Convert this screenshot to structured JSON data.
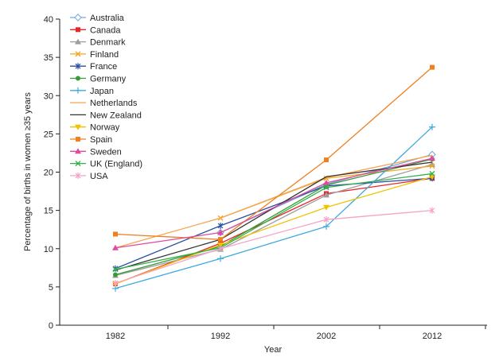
{
  "chart_data": {
    "type": "line",
    "title": "",
    "xlabel": "Year",
    "ylabel": "Percentage of births in women ≥35 years",
    "categories": [
      "1982",
      "1992",
      "2002",
      "2012"
    ],
    "ylim": [
      0,
      40
    ],
    "yticks": [
      0,
      5,
      10,
      15,
      20,
      25,
      30,
      35,
      40
    ],
    "grid": false,
    "legend_position": "top-left",
    "series": [
      {
        "name": "Australia",
        "color": "#6fa8dc",
        "marker": "diamond",
        "values": [
          null,
          12.1,
          18.4,
          22.3
        ]
      },
      {
        "name": "Canada",
        "color": "#e8252a",
        "marker": "square",
        "values": [
          5.4,
          10.7,
          17.2,
          19.2
        ]
      },
      {
        "name": "Denmark",
        "color": "#9e9e9e",
        "marker": "triangle",
        "values": [
          6.5,
          9.9,
          17.0,
          21.0
        ]
      },
      {
        "name": "Finland",
        "color": "#f5a623",
        "marker": "x",
        "values": [
          null,
          14.0,
          19.2,
          20.8
        ]
      },
      {
        "name": "France",
        "color": "#2b4fa3",
        "marker": "star",
        "values": [
          7.4,
          13.0,
          18.2,
          19.2
        ]
      },
      {
        "name": "Germany",
        "color": "#3a9a3a",
        "marker": "circle",
        "values": [
          6.6,
          10.3,
          18.3,
          21.7
        ]
      },
      {
        "name": "Japan",
        "color": "#3fa9e0",
        "marker": "plus",
        "values": [
          4.8,
          8.7,
          12.9,
          25.9
        ]
      },
      {
        "name": "Netherlands",
        "color": "#f7a450",
        "marker": "none",
        "values": [
          10.1,
          14.0,
          19.3,
          22.2
        ]
      },
      {
        "name": "New Zealand",
        "color": "#333333",
        "marker": "none",
        "values": [
          7.2,
          11.2,
          19.4,
          21.3
        ]
      },
      {
        "name": "Norway",
        "color": "#f2c200",
        "marker": "triangle-down",
        "values": [
          5.4,
          10.5,
          15.4,
          19.4
        ]
      },
      {
        "name": "Spain",
        "color": "#f07f1d",
        "marker": "square",
        "values": [
          11.9,
          11.2,
          21.6,
          33.7
        ]
      },
      {
        "name": "Sweden",
        "color": "#e04a9c",
        "marker": "triangle",
        "values": [
          10.1,
          12.1,
          18.6,
          21.8
        ]
      },
      {
        "name": "UK (England)",
        "color": "#33b24a",
        "marker": "x",
        "values": [
          7.3,
          10.1,
          18.0,
          19.8
        ]
      },
      {
        "name": "USA",
        "color": "#f5a3c7",
        "marker": "star",
        "values": [
          5.5,
          10.0,
          13.8,
          15.0
        ]
      }
    ]
  }
}
